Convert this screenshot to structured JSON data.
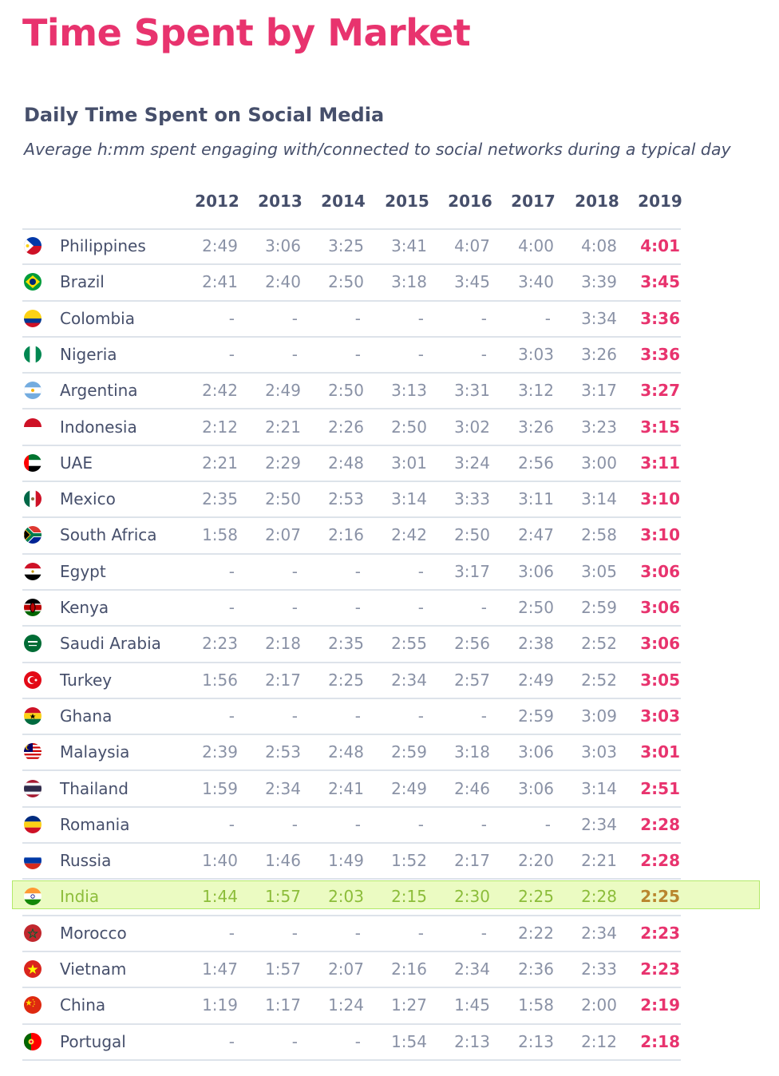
{
  "title": "Time Spent by Market",
  "section": {
    "title": "Daily Time Spent on Social Media",
    "subtitle": "Average h:mm spent engaging with/connected to social networks during a typical day"
  },
  "years": [
    "2012",
    "2013",
    "2014",
    "2015",
    "2016",
    "2017",
    "2018",
    "2019"
  ],
  "rows": [
    {
      "country": "Philippines",
      "flag": "philippines-flag-icon",
      "values": [
        "2:49",
        "3:06",
        "3:25",
        "3:41",
        "4:07",
        "4:00",
        "4:08",
        "4:01"
      ]
    },
    {
      "country": "Brazil",
      "flag": "brazil-flag-icon",
      "values": [
        "2:41",
        "2:40",
        "2:50",
        "3:18",
        "3:45",
        "3:40",
        "3:39",
        "3:45"
      ]
    },
    {
      "country": "Colombia",
      "flag": "colombia-flag-icon",
      "values": [
        "-",
        "-",
        "-",
        "-",
        "-",
        "-",
        "3:34",
        "3:36"
      ]
    },
    {
      "country": "Nigeria",
      "flag": "nigeria-flag-icon",
      "values": [
        "-",
        "-",
        "-",
        "-",
        "-",
        "3:03",
        "3:26",
        "3:36"
      ]
    },
    {
      "country": "Argentina",
      "flag": "argentina-flag-icon",
      "values": [
        "2:42",
        "2:49",
        "2:50",
        "3:13",
        "3:31",
        "3:12",
        "3:17",
        "3:27"
      ]
    },
    {
      "country": "Indonesia",
      "flag": "indonesia-flag-icon",
      "values": [
        "2:12",
        "2:21",
        "2:26",
        "2:50",
        "3:02",
        "3:26",
        "3:23",
        "3:15"
      ]
    },
    {
      "country": "UAE",
      "flag": "uae-flag-icon",
      "values": [
        "2:21",
        "2:29",
        "2:48",
        "3:01",
        "3:24",
        "2:56",
        "3:00",
        "3:11"
      ]
    },
    {
      "country": "Mexico",
      "flag": "mexico-flag-icon",
      "values": [
        "2:35",
        "2:50",
        "2:53",
        "3:14",
        "3:33",
        "3:11",
        "3:14",
        "3:10"
      ]
    },
    {
      "country": "South Africa",
      "flag": "south-africa-flag-icon",
      "values": [
        "1:58",
        "2:07",
        "2:16",
        "2:42",
        "2:50",
        "2:47",
        "2:58",
        "3:10"
      ]
    },
    {
      "country": "Egypt",
      "flag": "egypt-flag-icon",
      "values": [
        "-",
        "-",
        "-",
        "-",
        "3:17",
        "3:06",
        "3:05",
        "3:06"
      ]
    },
    {
      "country": "Kenya",
      "flag": "kenya-flag-icon",
      "values": [
        "-",
        "-",
        "-",
        "-",
        "-",
        "2:50",
        "2:59",
        "3:06"
      ]
    },
    {
      "country": "Saudi Arabia",
      "flag": "saudi-arabia-flag-icon",
      "values": [
        "2:23",
        "2:18",
        "2:35",
        "2:55",
        "2:56",
        "2:38",
        "2:52",
        "3:06"
      ]
    },
    {
      "country": "Turkey",
      "flag": "turkey-flag-icon",
      "values": [
        "1:56",
        "2:17",
        "2:25",
        "2:34",
        "2:57",
        "2:49",
        "2:52",
        "3:05"
      ]
    },
    {
      "country": "Ghana",
      "flag": "ghana-flag-icon",
      "values": [
        "-",
        "-",
        "-",
        "-",
        "-",
        "2:59",
        "3:09",
        "3:03"
      ]
    },
    {
      "country": "Malaysia",
      "flag": "malaysia-flag-icon",
      "values": [
        "2:39",
        "2:53",
        "2:48",
        "2:59",
        "3:18",
        "3:06",
        "3:03",
        "3:01"
      ]
    },
    {
      "country": "Thailand",
      "flag": "thailand-flag-icon",
      "values": [
        "1:59",
        "2:34",
        "2:41",
        "2:49",
        "2:46",
        "3:06",
        "3:14",
        "2:51"
      ]
    },
    {
      "country": "Romania",
      "flag": "romania-flag-icon",
      "values": [
        "-",
        "-",
        "-",
        "-",
        "-",
        "-",
        "2:34",
        "2:28"
      ]
    },
    {
      "country": "Russia",
      "flag": "russia-flag-icon",
      "values": [
        "1:40",
        "1:46",
        "1:49",
        "1:52",
        "2:17",
        "2:20",
        "2:21",
        "2:28"
      ]
    },
    {
      "country": "India",
      "flag": "india-flag-icon",
      "highlight": true,
      "values": [
        "1:44",
        "1:57",
        "2:03",
        "2:15",
        "2:30",
        "2:25",
        "2:28",
        "2:25"
      ]
    },
    {
      "country": "Morocco",
      "flag": "morocco-flag-icon",
      "values": [
        "-",
        "-",
        "-",
        "-",
        "-",
        "2:22",
        "2:34",
        "2:23"
      ]
    },
    {
      "country": "Vietnam",
      "flag": "vietnam-flag-icon",
      "values": [
        "1:47",
        "1:57",
        "2:07",
        "2:16",
        "2:34",
        "2:36",
        "2:33",
        "2:23"
      ]
    },
    {
      "country": "China",
      "flag": "china-flag-icon",
      "values": [
        "1:19",
        "1:17",
        "1:24",
        "1:27",
        "1:45",
        "1:58",
        "2:00",
        "2:19"
      ]
    },
    {
      "country": "Portugal",
      "flag": "portugal-flag-icon",
      "values": [
        "-",
        "-",
        "-",
        "1:54",
        "2:13",
        "2:13",
        "2:12",
        "2:18"
      ]
    }
  ],
  "colors": {
    "accent": "#e8336e",
    "heading": "#464f6b",
    "value": "#8a92a6",
    "highlight_bg": "#ebfbc2",
    "highlight_border": "#b3e96a"
  }
}
